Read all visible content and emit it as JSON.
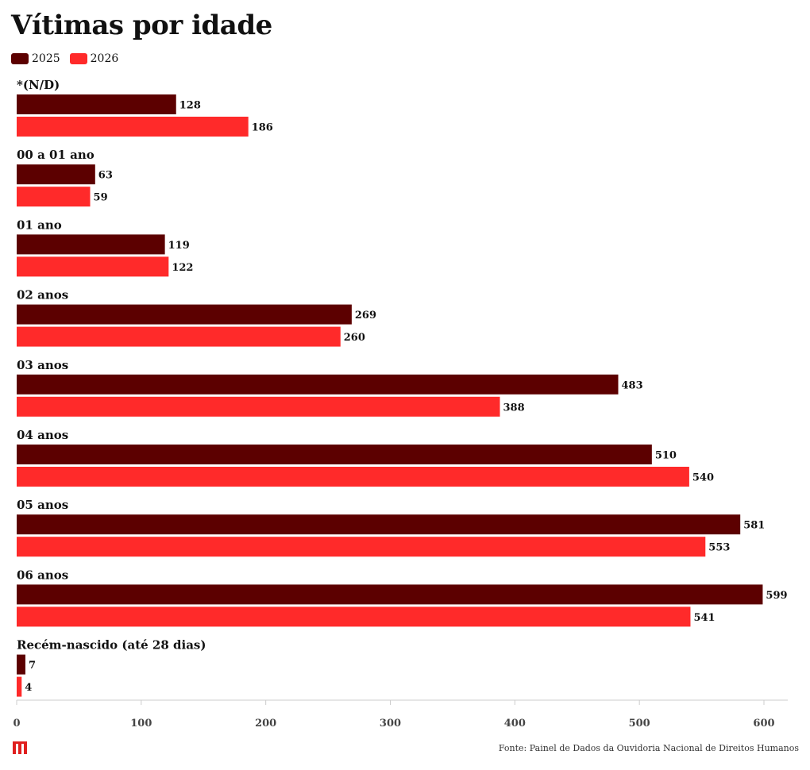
{
  "header": {
    "title": "Vítimas por idade"
  },
  "footer": {
    "source": "Fonte: Painel de Dados da Ouvidoria Nacional de Direitos Humanos"
  },
  "colors": {
    "s2025": "#5c0000",
    "s2026": "#ff2a2a",
    "axis": "#cccccc",
    "logo": "#e0201f"
  },
  "chart_data": {
    "type": "bar",
    "orientation": "horizontal",
    "title": "Vítimas por idade",
    "categories": [
      "*(N/D)",
      "00 a 01 ano",
      "01 ano",
      "02 anos",
      "03 anos",
      "04 anos",
      "05 anos",
      "06 anos",
      "Recém-nascido (até 28 dias)"
    ],
    "series": [
      {
        "name": "2025",
        "values": [
          128,
          63,
          119,
          269,
          483,
          510,
          581,
          599,
          7
        ]
      },
      {
        "name": "2026",
        "values": [
          186,
          59,
          122,
          260,
          388,
          540,
          553,
          541,
          4
        ]
      }
    ],
    "xticks": [
      0,
      100,
      200,
      300,
      400,
      500,
      600
    ],
    "xlim": [
      0,
      600
    ],
    "legend_position": "top-left",
    "grid": false
  }
}
